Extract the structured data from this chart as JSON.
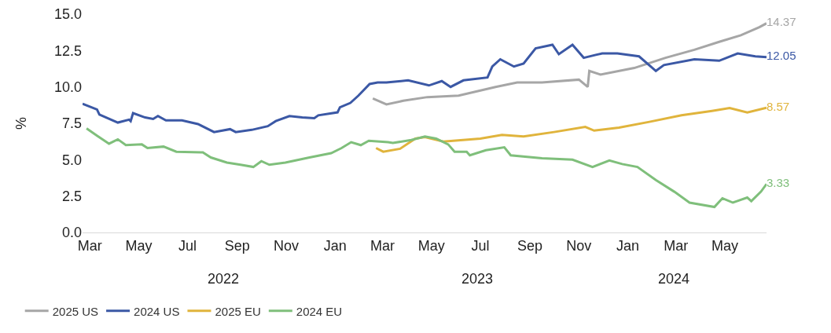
{
  "chart_data": {
    "type": "line",
    "ylabel": "%",
    "ylim": [
      0,
      15
    ],
    "yticks": [
      {
        "value": 0,
        "label": "0.0"
      },
      {
        "value": 2.5,
        "label": "2.5"
      },
      {
        "value": 5,
        "label": "5.0"
      },
      {
        "value": 7.5,
        "label": "7.5"
      },
      {
        "value": 10,
        "label": "10.0"
      },
      {
        "value": 12.5,
        "label": "12.5"
      },
      {
        "value": 15,
        "label": "15.0"
      }
    ],
    "xticks": [
      {
        "value": "2022-03-01",
        "label": "Mar"
      },
      {
        "value": "2022-05-01",
        "label": "May"
      },
      {
        "value": "2022-07-01",
        "label": "Jul"
      },
      {
        "value": "2022-09-01",
        "label": "Sep"
      },
      {
        "value": "2022-11-01",
        "label": "Nov"
      },
      {
        "value": "2023-01-01",
        "label": "Jan"
      },
      {
        "value": "2023-03-01",
        "label": "Mar"
      },
      {
        "value": "2023-05-01",
        "label": "May"
      },
      {
        "value": "2023-07-01",
        "label": "Jul"
      },
      {
        "value": "2023-09-01",
        "label": "Sep"
      },
      {
        "value": "2023-11-01",
        "label": "Nov"
      },
      {
        "value": "2024-01-01",
        "label": "Jan"
      },
      {
        "value": "2024-03-01",
        "label": "Mar"
      },
      {
        "value": "2024-05-01",
        "label": "May"
      }
    ],
    "xlim": [
      "2022-02-20",
      "2024-06-22"
    ],
    "annotations": [
      "2022",
      "2023",
      "2024"
    ],
    "grid": false,
    "legend": "bottom left",
    "marker": "none",
    "line_style": "solid",
    "series": [
      {
        "name": "2025 US",
        "color": "#a6a6a6",
        "x": [
          "2023-02-17",
          "2023-03-06",
          "2023-03-27",
          "2023-04-26",
          "2023-06-04",
          "2023-07-20",
          "2023-08-16",
          "2023-09-16",
          "2023-11-01",
          "2023-11-12",
          "2023-11-14",
          "2023-11-28",
          "2024-01-09",
          "2024-02-17",
          "2024-03-24",
          "2024-04-24",
          "2024-05-21",
          "2024-06-13",
          "2024-06-22"
        ],
        "values": [
          9.2,
          8.8,
          9.05,
          9.3,
          9.4,
          10.0,
          10.3,
          10.3,
          10.5,
          10.0,
          11.1,
          10.85,
          11.3,
          12.0,
          12.55,
          13.1,
          13.55,
          14.1,
          14.37
        ],
        "value_labels": [
          null,
          null,
          null,
          null,
          null,
          null,
          null,
          null,
          null,
          null,
          null,
          null,
          null,
          null,
          null,
          null,
          null,
          null,
          "14.37"
        ]
      },
      {
        "name": "2024 US",
        "color": "#3b58a5",
        "x": [
          "2022-02-20",
          "2022-03-10",
          "2022-03-13",
          "2022-04-05",
          "2022-04-19",
          "2022-04-21",
          "2022-04-24",
          "2022-05-09",
          "2022-05-19",
          "2022-05-25",
          "2022-06-04",
          "2022-06-24",
          "2022-07-14",
          "2022-08-03",
          "2022-08-23",
          "2022-08-30",
          "2022-09-19",
          "2022-10-09",
          "2022-10-19",
          "2022-11-05",
          "2022-11-21",
          "2022-12-06",
          "2022-12-11",
          "2023-01-04",
          "2023-01-07",
          "2023-01-20",
          "2023-01-30",
          "2023-02-13",
          "2023-02-23",
          "2023-03-06",
          "2023-04-02",
          "2023-04-28",
          "2023-05-14",
          "2023-05-25",
          "2023-06-10",
          "2023-07-10",
          "2023-07-16",
          "2023-07-26",
          "2023-08-12",
          "2023-08-24",
          "2023-09-08",
          "2023-09-29",
          "2023-10-07",
          "2023-10-24",
          "2023-11-07",
          "2023-11-22",
          "2023-11-30",
          "2023-12-19",
          "2024-01-15",
          "2024-02-05",
          "2024-02-15",
          "2024-03-24",
          "2024-04-24",
          "2024-05-17",
          "2024-06-08",
          "2024-06-22"
        ],
        "values": [
          8.84,
          8.45,
          8.1,
          7.55,
          7.75,
          7.65,
          8.2,
          7.9,
          7.8,
          8.0,
          7.7,
          7.7,
          7.45,
          6.9,
          7.1,
          6.9,
          7.05,
          7.3,
          7.65,
          8.0,
          7.9,
          7.85,
          8.05,
          8.25,
          8.6,
          8.9,
          9.4,
          10.2,
          10.3,
          10.3,
          10.45,
          10.1,
          10.4,
          10.0,
          10.45,
          10.65,
          11.4,
          11.9,
          11.4,
          11.6,
          12.65,
          12.9,
          12.25,
          12.9,
          12.0,
          12.2,
          12.3,
          12.3,
          12.1,
          11.1,
          11.5,
          11.9,
          11.8,
          12.3,
          12.1,
          12.05
        ],
        "value_labels": [
          null,
          null,
          null,
          null,
          null,
          null,
          null,
          null,
          null,
          null,
          null,
          null,
          null,
          null,
          null,
          null,
          null,
          null,
          null,
          null,
          null,
          null,
          null,
          null,
          null,
          null,
          null,
          null,
          null,
          null,
          null,
          null,
          null,
          null,
          null,
          null,
          null,
          null,
          null,
          null,
          null,
          null,
          null,
          null,
          null,
          null,
          null,
          null,
          null,
          null,
          null,
          null,
          null,
          null,
          null,
          "12.05"
        ]
      },
      {
        "name": "2025 EU",
        "color": "#e0b43c",
        "x": [
          "2023-02-21",
          "2023-03-02",
          "2023-03-23",
          "2023-04-11",
          "2023-04-23",
          "2023-05-16",
          "2023-07-01",
          "2023-07-28",
          "2023-08-24",
          "2023-10-01",
          "2023-11-09",
          "2023-11-20",
          "2023-12-21",
          "2024-01-28",
          "2024-03-08",
          "2024-04-15",
          "2024-05-07",
          "2024-05-29",
          "2024-06-22"
        ],
        "values": [
          5.8,
          5.55,
          5.75,
          6.45,
          6.55,
          6.25,
          6.45,
          6.7,
          6.6,
          6.9,
          7.25,
          7.0,
          7.2,
          7.6,
          8.05,
          8.35,
          8.55,
          8.25,
          8.57
        ],
        "value_labels": [
          null,
          null,
          null,
          null,
          null,
          null,
          null,
          null,
          null,
          null,
          null,
          null,
          null,
          null,
          null,
          null,
          null,
          null,
          "8.57"
        ]
      },
      {
        "name": "2024 EU",
        "color": "#7fbf7b",
        "x": [
          "2022-02-25",
          "2022-03-10",
          "2022-03-25",
          "2022-04-05",
          "2022-04-15",
          "2022-05-05",
          "2022-05-12",
          "2022-06-01",
          "2022-06-17",
          "2022-07-20",
          "2022-07-30",
          "2022-08-19",
          "2022-09-05",
          "2022-09-21",
          "2022-10-01",
          "2022-10-11",
          "2022-10-31",
          "2022-11-30",
          "2022-12-27",
          "2023-01-09",
          "2023-01-21",
          "2023-02-02",
          "2023-02-12",
          "2023-03-08",
          "2023-03-14",
          "2023-04-06",
          "2023-04-23",
          "2023-05-07",
          "2023-05-22",
          "2023-05-30",
          "2023-06-14",
          "2023-06-18",
          "2023-07-08",
          "2023-07-31",
          "2023-08-08",
          "2023-09-16",
          "2023-10-24",
          "2023-11-18",
          "2023-12-09",
          "2023-12-25",
          "2024-01-13",
          "2024-02-05",
          "2024-02-28",
          "2024-03-18",
          "2024-04-18",
          "2024-04-28",
          "2024-05-11",
          "2024-05-29",
          "2024-06-03",
          "2024-06-15",
          "2024-06-22"
        ],
        "values": [
          7.15,
          6.65,
          6.1,
          6.4,
          6.0,
          6.05,
          5.8,
          5.9,
          5.55,
          5.5,
          5.15,
          4.8,
          4.65,
          4.5,
          4.9,
          4.65,
          4.8,
          5.15,
          5.45,
          5.8,
          6.2,
          6.0,
          6.3,
          6.2,
          6.15,
          6.35,
          6.6,
          6.45,
          6.05,
          5.55,
          5.55,
          5.3,
          5.65,
          5.85,
          5.3,
          5.1,
          5.0,
          4.5,
          4.95,
          4.7,
          4.5,
          3.6,
          2.8,
          2.05,
          1.75,
          2.35,
          2.05,
          2.4,
          2.15,
          2.8,
          3.33
        ],
        "value_labels": [
          null,
          null,
          null,
          null,
          null,
          null,
          null,
          null,
          null,
          null,
          null,
          null,
          null,
          null,
          null,
          null,
          null,
          null,
          null,
          null,
          null,
          null,
          null,
          null,
          null,
          null,
          null,
          null,
          null,
          null,
          null,
          null,
          null,
          null,
          null,
          null,
          null,
          null,
          null,
          null,
          null,
          null,
          null,
          null,
          null,
          null,
          null,
          null,
          null,
          null,
          "3.33"
        ]
      }
    ]
  }
}
